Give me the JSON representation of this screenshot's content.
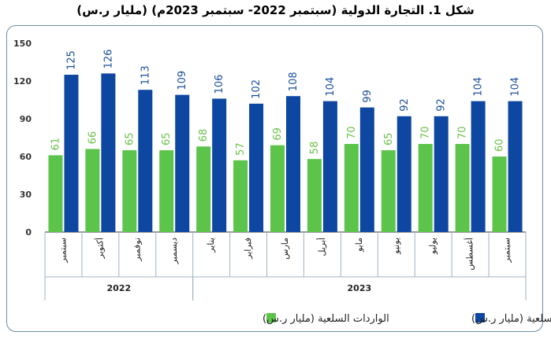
{
  "title": "شكل 1. التجارة الدولية (سبتمبر 2022- سبتمبر 2023م) (مليار ر.س)",
  "colors": {
    "imports": "#5cc44a",
    "exports": "#0d47a1",
    "importsLabel": "#6cc24a",
    "exportsLabel": "#1a4f9c",
    "axis": "#3b3b3b",
    "grid": "#9fb3c2"
  },
  "chart_data": {
    "type": "bar",
    "title": "شكل 1. التجارة الدولية (سبتمبر 2022- سبتمبر 2023م) (مليار ر.س)",
    "categories": [
      "سبتمبر",
      "أكتوبر",
      "نوفمبر",
      "ديسمبر",
      "يناير",
      "فبراير",
      "مارس",
      "أبريل",
      "مايو",
      "يونيو",
      "يوليو",
      "أغسطس",
      "سبتمبر"
    ],
    "years": [
      {
        "label": "2022",
        "from": 0,
        "to": 3
      },
      {
        "label": "2023",
        "from": 4,
        "to": 12
      }
    ],
    "series": [
      {
        "name": "الواردات السلعية (مليار ر.س)",
        "values": [
          61,
          66,
          65,
          65,
          68,
          57,
          69,
          58,
          70,
          65,
          70,
          70,
          60
        ]
      },
      {
        "name": "الصادرات السلعية (مليار ر.س)",
        "values": [
          125,
          126,
          113,
          109,
          106,
          102,
          108,
          104,
          99,
          92,
          92,
          104,
          104
        ]
      }
    ],
    "yticks": [
      0,
      30,
      60,
      90,
      120,
      150
    ],
    "ylim": [
      0,
      150
    ],
    "legend": "bottom"
  }
}
